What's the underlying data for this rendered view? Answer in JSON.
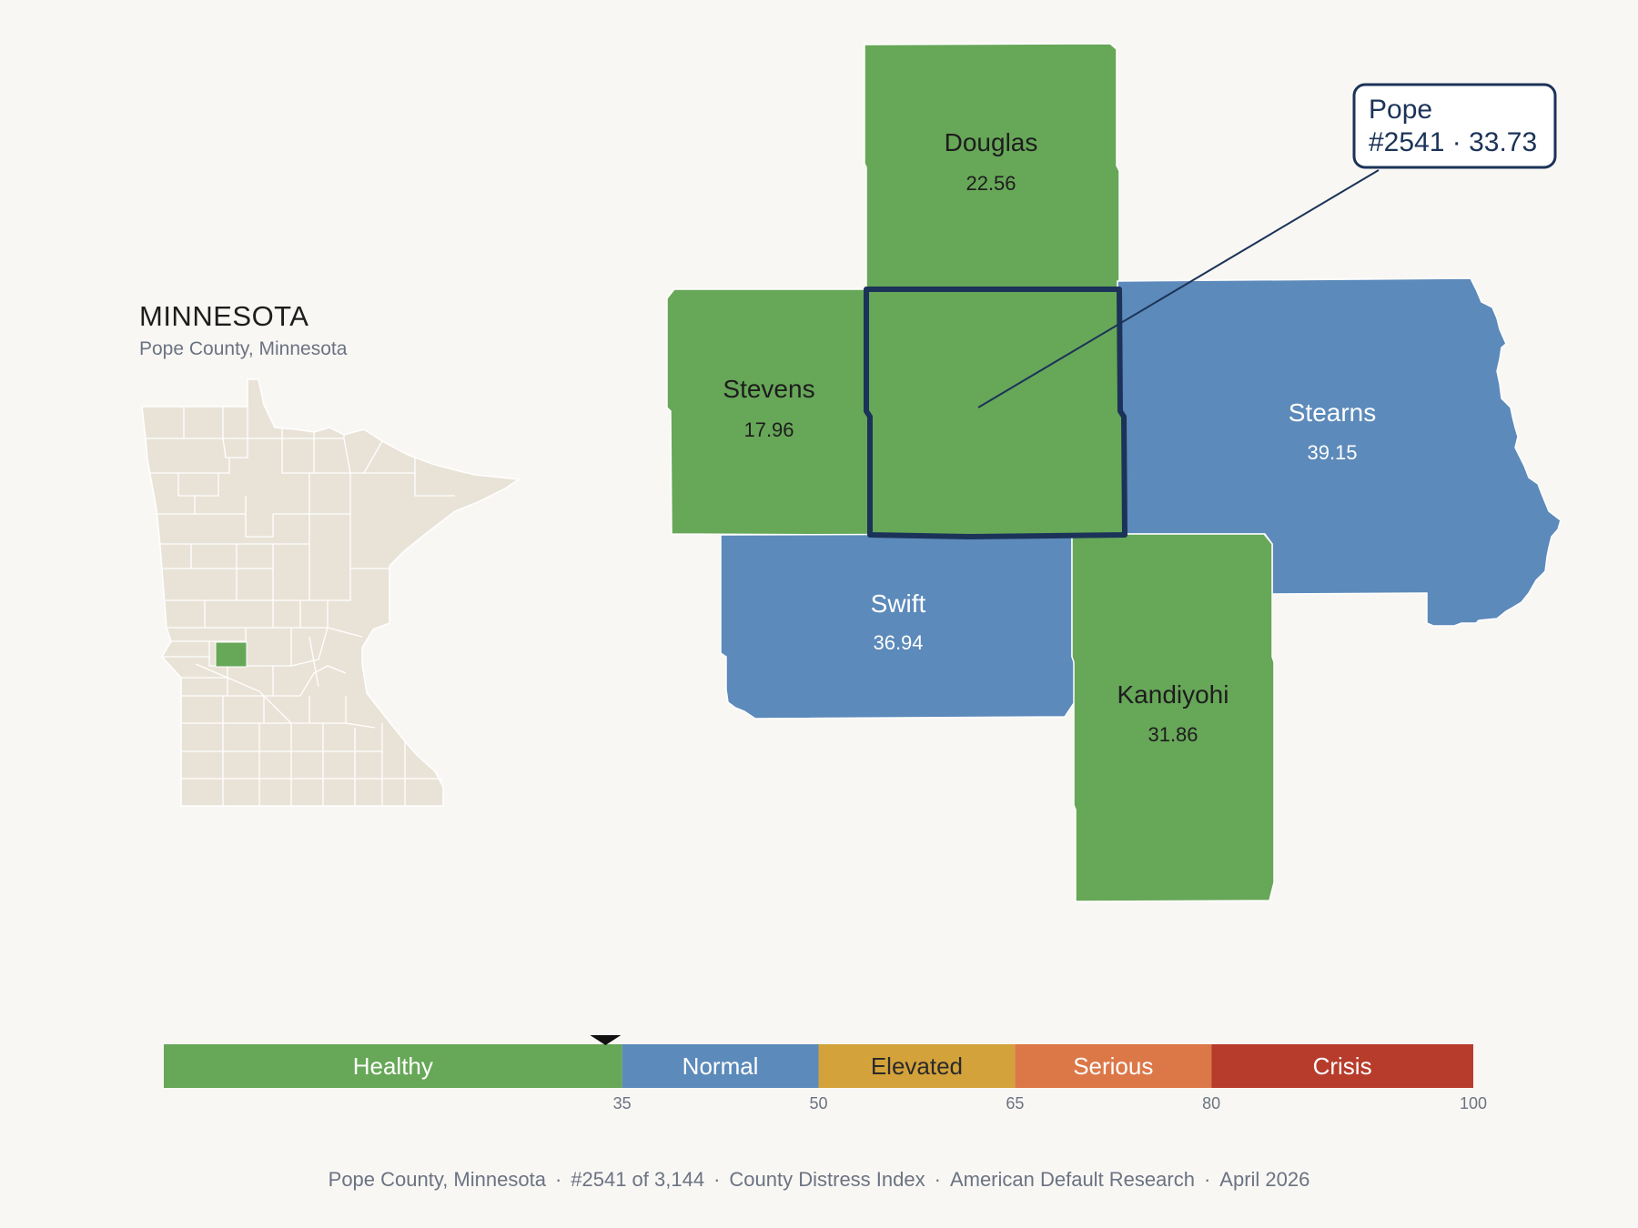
{
  "state": {
    "title": "MINNESOTA",
    "subtitle": "Pope County, Minnesota"
  },
  "counties": {
    "douglas": {
      "name": "Douglas",
      "value": "22.56",
      "category": "Healthy"
    },
    "stevens": {
      "name": "Stevens",
      "value": "17.96",
      "category": "Healthy"
    },
    "stearns": {
      "name": "Stearns",
      "value": "39.15",
      "category": "Normal"
    },
    "swift": {
      "name": "Swift",
      "value": "36.94",
      "category": "Normal"
    },
    "kandiyohi": {
      "name": "Kandiyohi",
      "value": "31.86",
      "category": "Healthy"
    },
    "pope": {
      "name": "Pope",
      "value": "33.73",
      "category": "Healthy"
    }
  },
  "callout": {
    "line1": "Pope",
    "line2": "#2541 · 33.73"
  },
  "scale": {
    "min": 0,
    "max": 100,
    "marker_value": 33.73,
    "bands": [
      {
        "label": "Healthy",
        "from": 0,
        "to": 35,
        "color": "#67a758",
        "text_color": "#ffffff"
      },
      {
        "label": "Normal",
        "from": 35,
        "to": 50,
        "color": "#5c8aba",
        "text_color": "#ffffff"
      },
      {
        "label": "Elevated",
        "from": 50,
        "to": 65,
        "color": "#d4a23a",
        "text_color": "#2a2a2a"
      },
      {
        "label": "Serious",
        "from": 65,
        "to": 80,
        "color": "#dc7748",
        "text_color": "#ffffff"
      },
      {
        "label": "Crisis",
        "from": 80,
        "to": 100,
        "color": "#b73c2c",
        "text_color": "#ffffff"
      }
    ],
    "ticks": [
      "35",
      "50",
      "65",
      "80",
      "100"
    ]
  },
  "footer": {
    "location": "Pope County, Minnesota",
    "rank": "#2541 of 3,144",
    "index": "County Distress Index",
    "source": "American Default Research",
    "date": "April 2026"
  },
  "colors": {
    "healthy": "#67a758",
    "normal": "#5c8aba",
    "state_fill": "#e9e3d7",
    "highlight_border": "#1b3358"
  }
}
